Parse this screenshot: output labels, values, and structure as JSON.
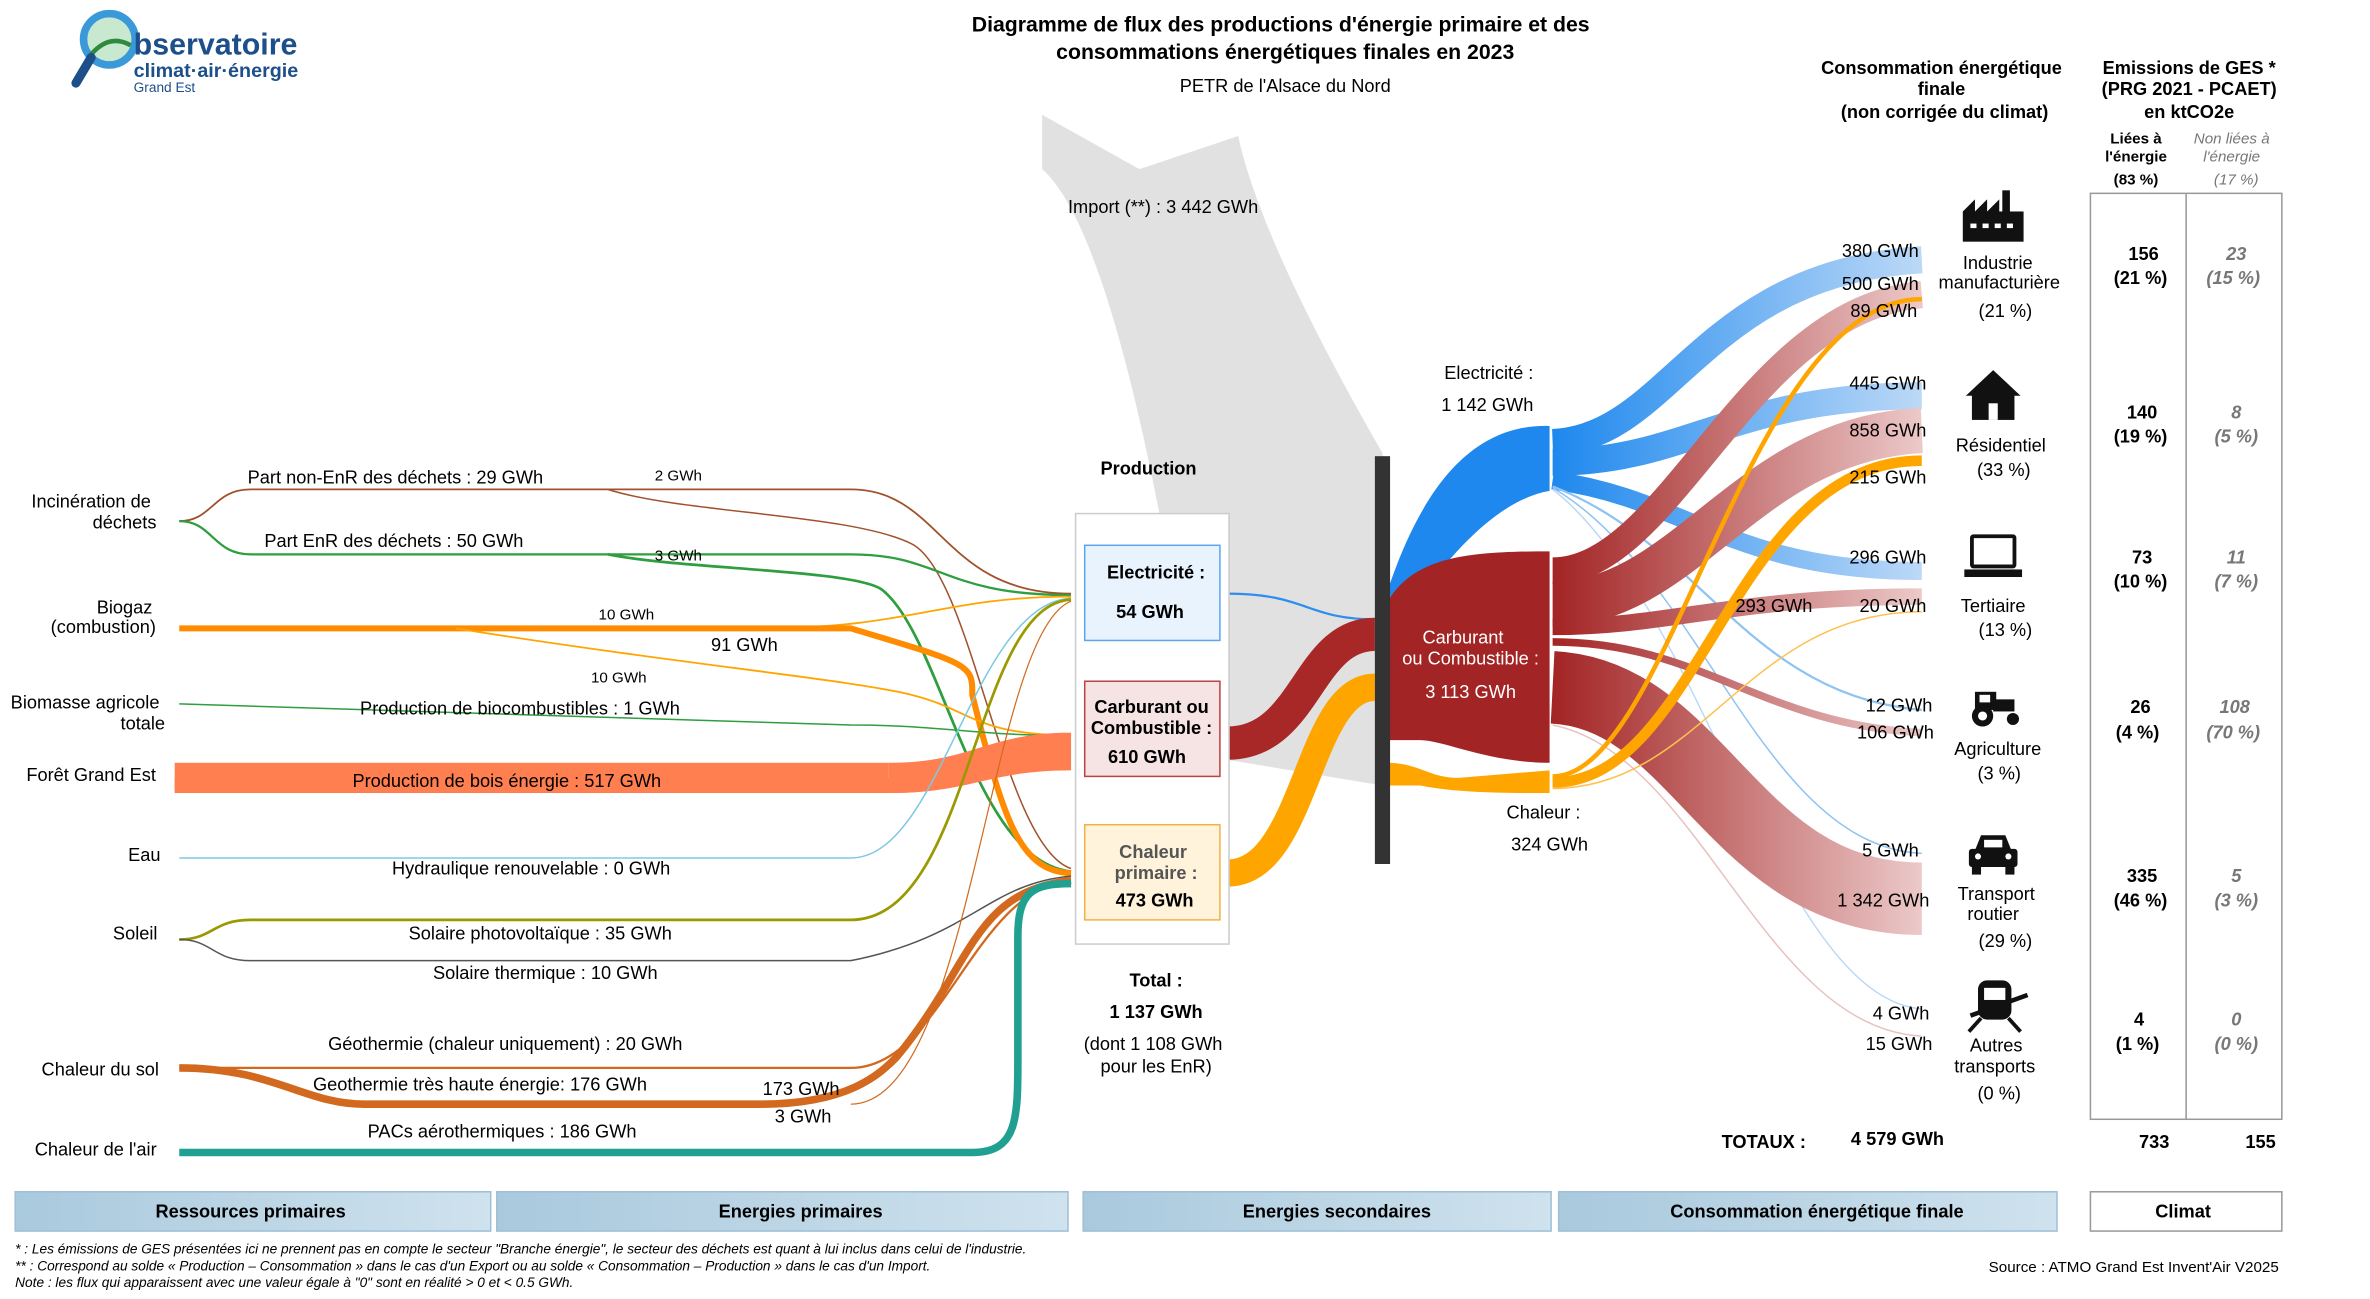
{
  "header": {
    "title_line1": "Diagramme de flux des productions d'énergie primaire et des",
    "title_line2": "consommations énergétiques finales en 2023",
    "subtitle": "PETR de l'Alsace du Nord"
  },
  "logo": {
    "line1": "bservatoire",
    "line2": "climat·air·énergie",
    "line3": "Grand Est"
  },
  "sources": [
    "Incinération de déchets",
    "Biogaz (combustion)",
    "Biomasse agricole totale",
    "Forêt Grand Est",
    "Eau",
    "Soleil",
    "Chaleur du sol",
    "Chaleur de l'air"
  ],
  "flow_labels": {
    "part_non_enr": "Part non-EnR des déchets :  29 GWh",
    "non_enr_elec": "2 GWh",
    "part_enr": "Part EnR des déchets :  50 GWh",
    "enr_elec": "3 GWh",
    "biogaz_elec": "10 GWh",
    "biogaz_chal": "91 GWh",
    "biogaz_carb": "10 GWh",
    "biocomb": "Production de biocombustibles :  1 GWh",
    "bois": "Production de bois énergie :  517 GWh",
    "hydro": "Hydraulique renouvelable :  0 GWh",
    "pv": "Solaire photovoltaïque :  35 GWh",
    "thermique": "Solaire thermique :  10 GWh",
    "geo_chal": "Géothermie (chaleur uniquement) :  20 GWh",
    "geo_the": "Geothermie très haute énergie:  176 GWh",
    "geo_the_chal": "173 GWh",
    "geo_the_elec": "3 GWh",
    "pac": "PACs aérothermiques :  186 GWh",
    "import": "Import (**) : 3 442 GWh"
  },
  "production": {
    "title": "Production",
    "elec_label": "Electricité :",
    "elec_value": "54 GWh",
    "carb_label": "Carburant ou Combustible :",
    "carb_value": "610 GWh",
    "chal_label": "Chaleur primaire :",
    "chal_value": "473 GWh",
    "total_label": "Total :",
    "total_value": "1 137 GWh",
    "total_note": "(dont 1 108 GWh pour les EnR)"
  },
  "secondary": {
    "elec_label": "Electricité :",
    "elec_value": "1 142 GWh",
    "carb_label": "Carburant ou Combustible :",
    "carb_value": "3 113 GWh",
    "chal_label": "Chaleur :",
    "chal_value": "324 GWh"
  },
  "consumption_header": "Consommation énergétique finale (non corrigée du climat)",
  "sectors": [
    {
      "name": "Industrie manufacturière",
      "share": "(21 %)",
      "elec": "380 GWh",
      "carb": "500 GWh",
      "chal": "89 GWh",
      "ges_lie": "156",
      "ges_lie_pct": "(21 %)",
      "ges_non": "23",
      "ges_non_pct": "(15 %)"
    },
    {
      "name": "Résidentiel",
      "share": "(33 %)",
      "elec": "445 GWh",
      "carb": "858 GWh",
      "chal": "215 GWh",
      "ges_lie": "140",
      "ges_lie_pct": "(19 %)",
      "ges_non": "8",
      "ges_non_pct": "(5 %)"
    },
    {
      "name": "Tertiaire",
      "share": "(13 %)",
      "elec": "296 GWh",
      "carb": "293 GWh",
      "chal": "20 GWh",
      "ges_lie": "73",
      "ges_lie_pct": "(10 %)",
      "ges_non": "11",
      "ges_non_pct": "(7 %)"
    },
    {
      "name": "Agriculture",
      "share": "(3 %)",
      "elec": "12 GWh",
      "carb": "106 GWh",
      "chal": "",
      "ges_lie": "26",
      "ges_lie_pct": "(4 %)",
      "ges_non": "108",
      "ges_non_pct": "(70 %)"
    },
    {
      "name": "Transport routier",
      "share": "(29 %)",
      "elec": "5 GWh",
      "carb": "1 342 GWh",
      "chal": "",
      "ges_lie": "335",
      "ges_lie_pct": "(46 %)",
      "ges_non": "5",
      "ges_non_pct": "(3 %)"
    },
    {
      "name": "Autres transports",
      "share": "(0 %)",
      "elec": "4 GWh",
      "carb": "15 GWh",
      "chal": "",
      "ges_lie": "4",
      "ges_lie_pct": "(1 %)",
      "ges_non": "0",
      "ges_non_pct": "(0 %)"
    }
  ],
  "ges": {
    "header": "Emissions de GES * (PRG 2021 - PCAET) en ktCO2e",
    "col_lie": "Liées à l'énergie",
    "col_lie_pct": "(83 %)",
    "col_non": "Non liées à l'énergie",
    "col_non_pct": "(17 %)",
    "total_lie": "733",
    "total_non": "155"
  },
  "totals": {
    "label": "TOTAUX :",
    "value": "4 579 GWh"
  },
  "footer_bands": [
    "Ressources primaires",
    "Energies primaires",
    "Energies secondaires",
    "Consommation énergétique finale",
    "Climat"
  ],
  "notes": [
    "* : Les émissions de GES présentées ici ne prennent pas en compte le secteur \"Branche énergie\", le secteur des déchets est quant à lui inclus dans celui de l'industrie.",
    "** : Correspond au solde « Production – Consommation » dans le cas d'un Export ou au solde « Consommation – Production » dans le cas d'un Import.",
    "Note : les flux qui apparaissent avec une valeur égale à \"0\" sont en réalité > 0 et < 0.5 GWh."
  ],
  "source": "Source : ATMO Grand Est Invent'Air V2025",
  "colors": {
    "electricite": "#2e8ef0",
    "carburant": "#a82828",
    "chaleur": "#ffa500",
    "bois": "#ff7f50",
    "pac": "#20a090",
    "geothermie": "#d2691e",
    "import": "#d9d9d9"
  }
}
